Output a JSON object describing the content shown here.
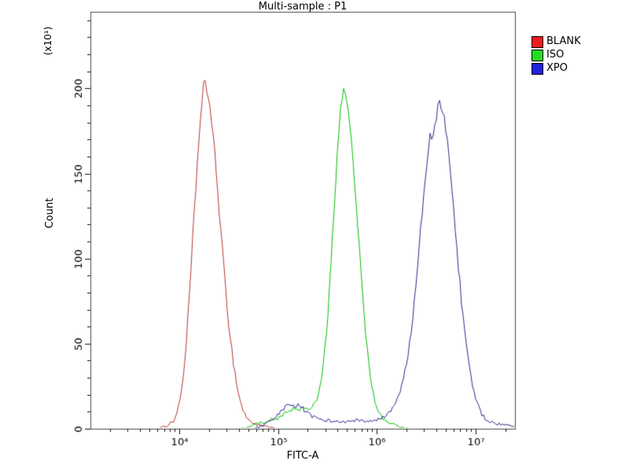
{
  "title": "Multi-sample : P1",
  "chart_data": {
    "type": "line",
    "chart_kind": "flow-cytometry-histogram-overlay",
    "xlabel": "FITC-A",
    "ylabel": "Count",
    "y_unit_label": "(x10¹)",
    "x_scale": "log10",
    "xlim_log10": [
      3.1,
      7.4
    ],
    "ylim": [
      0,
      245
    ],
    "grid": false,
    "legend_position": "outside-top-right",
    "frame_color": "#4a4a4a",
    "tick_color": "#111111",
    "x_ticks": [
      {
        "log10": 4,
        "label": "10⁴"
      },
      {
        "log10": 5,
        "label": "10⁵"
      },
      {
        "log10": 6,
        "label": "10⁶"
      },
      {
        "log10": 7,
        "label": "10⁷"
      }
    ],
    "y_ticks": [
      {
        "value": 0,
        "label": "0"
      },
      {
        "value": 50,
        "label": "50"
      },
      {
        "value": 100,
        "label": "100"
      },
      {
        "value": 150,
        "label": "150"
      },
      {
        "value": 200,
        "label": "200"
      }
    ],
    "series": [
      {
        "name": "BLANK",
        "color": "#b83232",
        "legend_color": "#ee1c1c",
        "peak_x": 18000,
        "peak_count": 204,
        "points": [
          [
            3.1,
            0
          ],
          [
            3.75,
            0
          ],
          [
            3.85,
            1
          ],
          [
            3.95,
            5
          ],
          [
            4.0,
            14
          ],
          [
            4.05,
            35
          ],
          [
            4.1,
            75
          ],
          [
            4.15,
            125
          ],
          [
            4.2,
            172
          ],
          [
            4.25,
            204
          ],
          [
            4.3,
            195
          ],
          [
            4.35,
            168
          ],
          [
            4.4,
            132
          ],
          [
            4.45,
            95
          ],
          [
            4.5,
            62
          ],
          [
            4.55,
            38
          ],
          [
            4.6,
            20
          ],
          [
            4.65,
            10
          ],
          [
            4.7,
            5
          ],
          [
            4.8,
            2
          ],
          [
            4.9,
            1
          ],
          [
            5.0,
            0
          ],
          [
            7.4,
            0
          ]
        ]
      },
      {
        "name": "ISO",
        "color": "#00c000",
        "legend_color": "#22dd22",
        "peak_x": 470000,
        "peak_count": 199,
        "points": [
          [
            3.1,
            0
          ],
          [
            4.6,
            0
          ],
          [
            4.7,
            1
          ],
          [
            4.8,
            3
          ],
          [
            4.9,
            5
          ],
          [
            5.0,
            6
          ],
          [
            5.05,
            8
          ],
          [
            5.1,
            10
          ],
          [
            5.15,
            12
          ],
          [
            5.2,
            11
          ],
          [
            5.25,
            12
          ],
          [
            5.3,
            11
          ],
          [
            5.35,
            13
          ],
          [
            5.4,
            18
          ],
          [
            5.45,
            32
          ],
          [
            5.5,
            62
          ],
          [
            5.55,
            110
          ],
          [
            5.6,
            162
          ],
          [
            5.64,
            192
          ],
          [
            5.67,
            199
          ],
          [
            5.7,
            193
          ],
          [
            5.74,
            172
          ],
          [
            5.78,
            143
          ],
          [
            5.82,
            108
          ],
          [
            5.86,
            76
          ],
          [
            5.9,
            48
          ],
          [
            5.94,
            28
          ],
          [
            5.98,
            16
          ],
          [
            6.02,
            9
          ],
          [
            6.08,
            5
          ],
          [
            6.15,
            3
          ],
          [
            6.25,
            1
          ],
          [
            6.35,
            0
          ],
          [
            7.4,
            0
          ]
        ]
      },
      {
        "name": "XPO",
        "color": "#28288e",
        "legend_color": "#2222e0",
        "peak_x": 4300000,
        "peak_count": 194,
        "points": [
          [
            3.1,
            0
          ],
          [
            4.75,
            0
          ],
          [
            4.85,
            2
          ],
          [
            4.95,
            5
          ],
          [
            5.0,
            8
          ],
          [
            5.05,
            11
          ],
          [
            5.1,
            14
          ],
          [
            5.15,
            13
          ],
          [
            5.2,
            14
          ],
          [
            5.25,
            12
          ],
          [
            5.3,
            9
          ],
          [
            5.35,
            7
          ],
          [
            5.4,
            6
          ],
          [
            5.5,
            5
          ],
          [
            5.6,
            4
          ],
          [
            5.7,
            4
          ],
          [
            5.8,
            5
          ],
          [
            5.9,
            4
          ],
          [
            6.0,
            5
          ],
          [
            6.05,
            6
          ],
          [
            6.1,
            8
          ],
          [
            6.15,
            11
          ],
          [
            6.2,
            16
          ],
          [
            6.25,
            24
          ],
          [
            6.3,
            38
          ],
          [
            6.35,
            58
          ],
          [
            6.4,
            86
          ],
          [
            6.45,
            120
          ],
          [
            6.5,
            152
          ],
          [
            6.54,
            172
          ],
          [
            6.57,
            170
          ],
          [
            6.6,
            181
          ],
          [
            6.63,
            194
          ],
          [
            6.66,
            189
          ],
          [
            6.7,
            176
          ],
          [
            6.74,
            156
          ],
          [
            6.78,
            128
          ],
          [
            6.82,
            100
          ],
          [
            6.86,
            74
          ],
          [
            6.9,
            52
          ],
          [
            6.94,
            35
          ],
          [
            6.98,
            22
          ],
          [
            7.02,
            14
          ],
          [
            7.06,
            9
          ],
          [
            7.1,
            6
          ],
          [
            7.15,
            4
          ],
          [
            7.2,
            3
          ],
          [
            7.3,
            2
          ],
          [
            7.4,
            1
          ]
        ]
      }
    ]
  }
}
